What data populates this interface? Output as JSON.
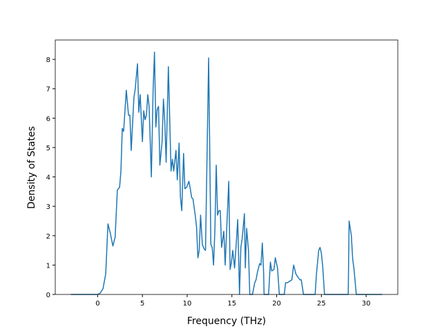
{
  "chart_data": {
    "type": "line",
    "x_label": "Frequency (THz)",
    "y_label": "Density of States",
    "xlim": [
      -4.74,
      33.54
    ],
    "ylim": [
      0,
      8.66
    ],
    "xticks": [
      0,
      5,
      10,
      15,
      20,
      25,
      30
    ],
    "yticks": [
      0,
      1,
      2,
      3,
      4,
      5,
      6,
      7,
      8
    ],
    "series": [
      {
        "color": "#1f77b4",
        "x": [
          -3,
          0,
          0.3,
          0.6,
          0.9,
          1.15,
          1.4,
          1.7,
          1.95,
          2.2,
          2.45,
          2.6,
          2.75,
          2.9,
          3.2,
          3.45,
          3.6,
          3.75,
          4.05,
          4.2,
          4.45,
          4.6,
          4.75,
          5.0,
          5.15,
          5.3,
          5.45,
          5.6,
          5.75,
          6.0,
          6.2,
          6.35,
          6.5,
          6.65,
          6.8,
          6.95,
          7.2,
          7.35,
          7.5,
          7.65,
          7.9,
          8.05,
          8.2,
          8.35,
          8.5,
          8.75,
          8.9,
          9.1,
          9.25,
          9.4,
          9.6,
          9.75,
          9.95,
          10.2,
          10.35,
          10.5,
          10.65,
          10.9,
          11.05,
          11.2,
          11.35,
          11.5,
          11.7,
          11.9,
          12.05,
          12.4,
          12.65,
          12.8,
          12.95,
          13.1,
          13.25,
          13.4,
          13.55,
          13.7,
          13.85,
          14.1,
          14.25,
          14.4,
          14.65,
          14.8,
          14.95,
          15.1,
          15.3,
          15.5,
          15.65,
          15.85,
          16.0,
          16.15,
          16.4,
          16.5,
          16.65,
          16.85,
          17.0,
          17.3,
          17.55,
          17.7,
          17.85,
          18.1,
          18.25,
          18.4,
          18.55,
          18.6,
          19.1,
          19.3,
          19.45,
          19.7,
          19.85,
          20.1,
          20.3,
          20.85,
          21.0,
          21.2,
          21.45,
          21.7,
          21.9,
          22.15,
          22.35,
          22.6,
          22.75,
          23.0,
          24.3,
          24.45,
          24.7,
          24.85,
          25.0,
          25.15,
          25.35,
          28.0,
          28.1,
          28.35,
          28.5,
          28.65,
          28.9,
          31.8
        ],
        "values": [
          0,
          0,
          0.05,
          0.2,
          0.7,
          2.4,
          2.1,
          1.65,
          1.95,
          3.55,
          3.65,
          4.2,
          5.65,
          5.55,
          6.95,
          6.1,
          6.1,
          4.9,
          6.7,
          7.0,
          7.85,
          6.2,
          6.8,
          5.2,
          6.25,
          5.95,
          6.1,
          6.8,
          6.4,
          4.0,
          7.0,
          8.25,
          5.7,
          6.3,
          6.4,
          4.4,
          5.2,
          6.65,
          5.9,
          4.5,
          7.75,
          6.0,
          4.2,
          4.6,
          4.2,
          4.9,
          3.9,
          5.15,
          3.3,
          2.85,
          4.8,
          3.6,
          3.65,
          3.85,
          3.6,
          3.3,
          3.25,
          2.7,
          2.3,
          1.25,
          1.5,
          2.7,
          1.7,
          1.55,
          1.5,
          8.05,
          1.7,
          1.6,
          1.0,
          2.2,
          4.4,
          2.7,
          2.85,
          2.85,
          1.6,
          2.15,
          1.0,
          2.1,
          3.85,
          0.85,
          1.1,
          1.5,
          0.9,
          1.8,
          2.55,
          0,
          1.6,
          1.9,
          2.75,
          0.9,
          2.25,
          1.5,
          0,
          0,
          0.4,
          0.5,
          0.75,
          1.05,
          1.0,
          1.75,
          0.7,
          0,
          0,
          1.1,
          0.8,
          0.85,
          1.25,
          0.9,
          0,
          0,
          0.4,
          0.4,
          0.45,
          0.5,
          1.0,
          0.7,
          0.6,
          0.5,
          0.5,
          0,
          0,
          0.7,
          1.5,
          1.6,
          1.4,
          0.95,
          0,
          0,
          2.5,
          2.0,
          1.2,
          0.85,
          0,
          0
        ]
      }
    ]
  }
}
